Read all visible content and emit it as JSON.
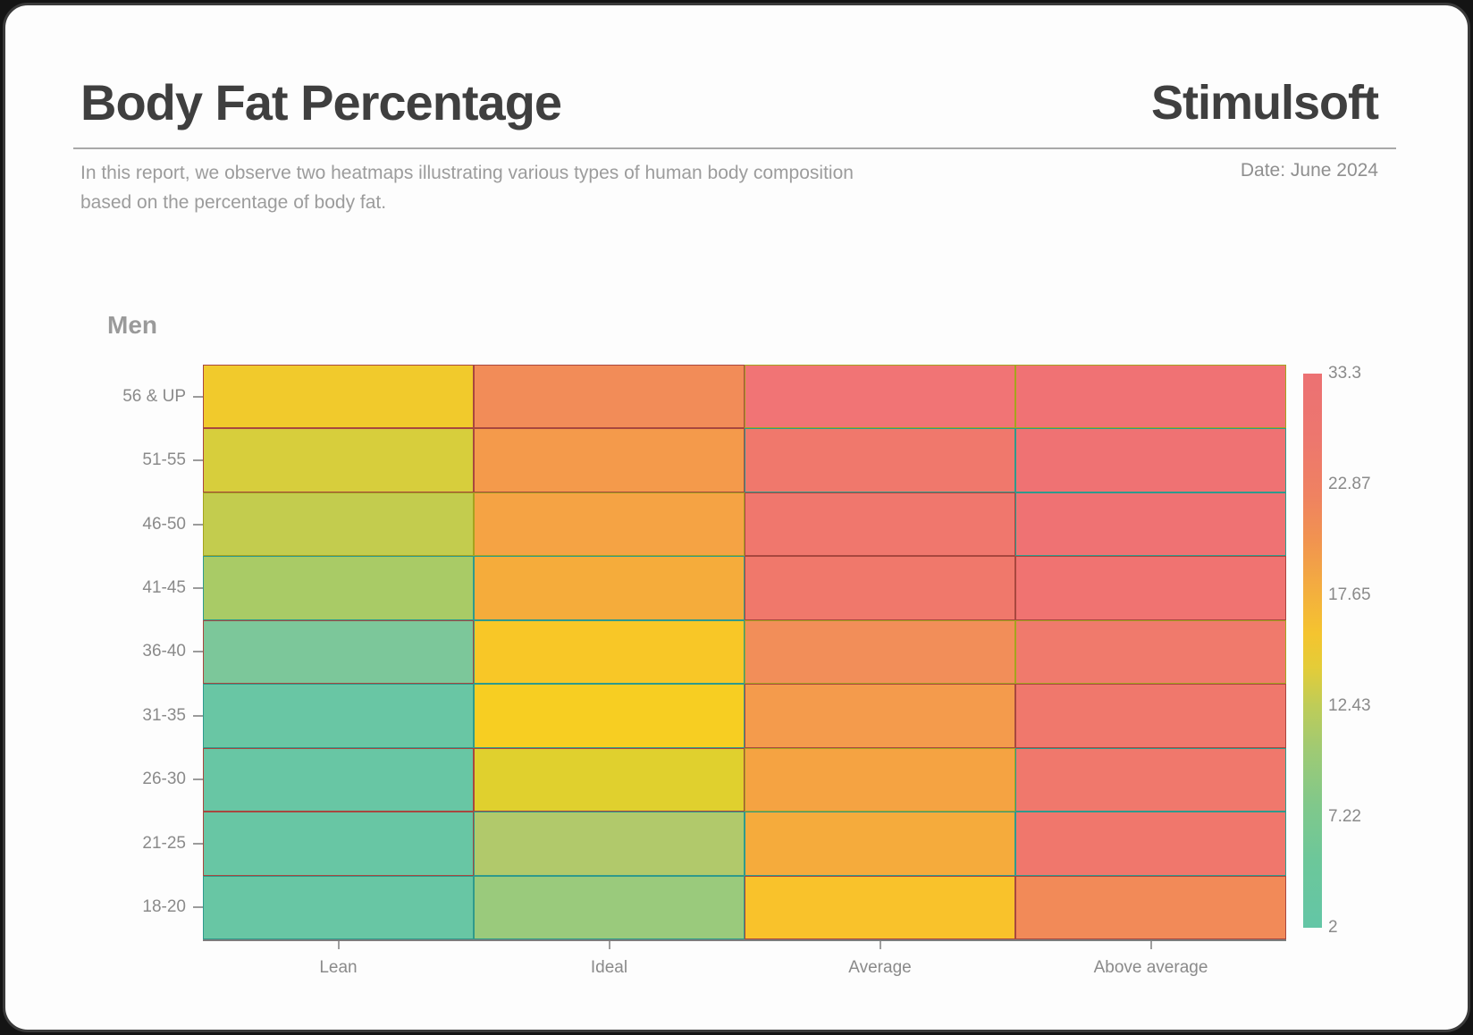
{
  "frame": {
    "background": "#141414",
    "card_border": "#3A3A3A"
  },
  "header": {
    "title": "Body Fat Percentage",
    "brand": "Stimulsoft",
    "subtitle_lines": [
      "In this report, we observe two heatmaps illustrating various types of human body composition",
      "based on the percentage of body fat."
    ],
    "date": "Date: June 2024"
  },
  "chart_data": {
    "type": "heatmap",
    "title": "Men",
    "x_categories": [
      "Lean",
      "Ideal",
      "Average",
      "Above average"
    ],
    "y_categories": [
      "56 & UP",
      "51-55",
      "46-50",
      "41-45",
      "36-40",
      "31-35",
      "26-30",
      "21-25",
      "18-20"
    ],
    "legend": {
      "position": "right",
      "min": 2,
      "max": 33.3,
      "ticks": [
        "33.3",
        "22.87",
        "17.65",
        "12.43",
        "7.22",
        "2"
      ],
      "gradient_stops": [
        {
          "color": "#63C6A6",
          "pos": 0
        },
        {
          "color": "#6CC79A",
          "pos": 12
        },
        {
          "color": "#80C88B",
          "pos": 22
        },
        {
          "color": "#9FCA74",
          "pos": 32
        },
        {
          "color": "#BECC58",
          "pos": 40
        },
        {
          "color": "#E4CC38",
          "pos": 47
        },
        {
          "color": "#F4C42F",
          "pos": 53
        },
        {
          "color": "#F3AB41",
          "pos": 62
        },
        {
          "color": "#F19350",
          "pos": 70
        },
        {
          "color": "#EF8261",
          "pos": 78
        },
        {
          "color": "#ED776E",
          "pos": 88
        },
        {
          "color": "#EC7173",
          "pos": 100
        }
      ]
    },
    "rows": [
      {
        "label": "56 & UP",
        "cells": [
          {
            "value": 15,
            "color": "#F1CA2C",
            "border": "#A8473F"
          },
          {
            "value": 21,
            "color": "#F28C58",
            "border": "#A8473F"
          },
          {
            "value": 29,
            "color": "#F17475",
            "border": "#A5A31E"
          },
          {
            "value": 31.5,
            "color": "#F07274",
            "border": "#A5A31E"
          }
        ]
      },
      {
        "label": "51-55",
        "cells": [
          {
            "value": 13,
            "color": "#D7CE3C",
            "border": "#A8473F"
          },
          {
            "value": 19.5,
            "color": "#F49A4B",
            "border": "#A8473F"
          },
          {
            "value": 24,
            "color": "#F0786C",
            "border": "#2F9A8C"
          },
          {
            "value": 30,
            "color": "#EF7273",
            "border": "#2F9A8C"
          }
        ]
      },
      {
        "label": "46-50",
        "cells": [
          {
            "value": 12.5,
            "color": "#C3CC4E",
            "border": "#A5A31E"
          },
          {
            "value": 18.5,
            "color": "#F5A344",
            "border": "#A5A31E"
          },
          {
            "value": 24,
            "color": "#F0776D",
            "border": "#A8473F"
          },
          {
            "value": 28.5,
            "color": "#EF7273",
            "border": "#2F9A8C"
          }
        ]
      },
      {
        "label": "41-45",
        "cells": [
          {
            "value": 10.5,
            "color": "#A9CB66",
            "border": "#2F9A8C"
          },
          {
            "value": 17.5,
            "color": "#F5AC3B",
            "border": "#2F9A8C"
          },
          {
            "value": 24,
            "color": "#F0786B",
            "border": "#A8473F"
          },
          {
            "value": 27,
            "color": "#F07371",
            "border": "#A8473F"
          }
        ]
      },
      {
        "label": "36-40",
        "cells": [
          {
            "value": 7,
            "color": "#7CC79A",
            "border": "#A8473F"
          },
          {
            "value": 15,
            "color": "#F8C727",
            "border": "#2F9A8C"
          },
          {
            "value": 20.5,
            "color": "#F28E59",
            "border": "#A5A31E"
          },
          {
            "value": 24.5,
            "color": "#F07A6C",
            "border": "#A5A31E"
          }
        ]
      },
      {
        "label": "31-35",
        "cells": [
          {
            "value": 5.5,
            "color": "#69C6A4",
            "border": "#2F9A8C"
          },
          {
            "value": 14.5,
            "color": "#F7CE22",
            "border": "#2F9A8C"
          },
          {
            "value": 19.5,
            "color": "#F49B4C",
            "border": "#A8473F"
          },
          {
            "value": 25,
            "color": "#F0786C",
            "border": "#A8473F"
          }
        ]
      },
      {
        "label": "26-30",
        "cells": [
          {
            "value": 5,
            "color": "#68C6A4",
            "border": "#A8473F"
          },
          {
            "value": 13.5,
            "color": "#E0D02E",
            "border": "#A8473F"
          },
          {
            "value": 18.5,
            "color": "#F5A342",
            "border": "#A5A31E"
          },
          {
            "value": 24.5,
            "color": "#F0786C",
            "border": "#2F9A8C"
          }
        ]
      },
      {
        "label": "21-25",
        "cells": [
          {
            "value": 4.5,
            "color": "#68C6A4",
            "border": "#A8473F"
          },
          {
            "value": 11,
            "color": "#B1C96B",
            "border": "#2F9A8C"
          },
          {
            "value": 17.5,
            "color": "#F5AB3C",
            "border": "#2F9A8C"
          },
          {
            "value": 24,
            "color": "#F0776C",
            "border": "#2F9A8C"
          }
        ]
      },
      {
        "label": "18-20",
        "cells": [
          {
            "value": 4,
            "color": "#68C6A4",
            "border": "#2F9A8C"
          },
          {
            "value": 10,
            "color": "#9ACA7C",
            "border": "#2F9A8C"
          },
          {
            "value": 15,
            "color": "#F9C22B",
            "border": "#A8473F"
          },
          {
            "value": 20,
            "color": "#F28A58",
            "border": "#A8473F"
          }
        ]
      }
    ]
  }
}
